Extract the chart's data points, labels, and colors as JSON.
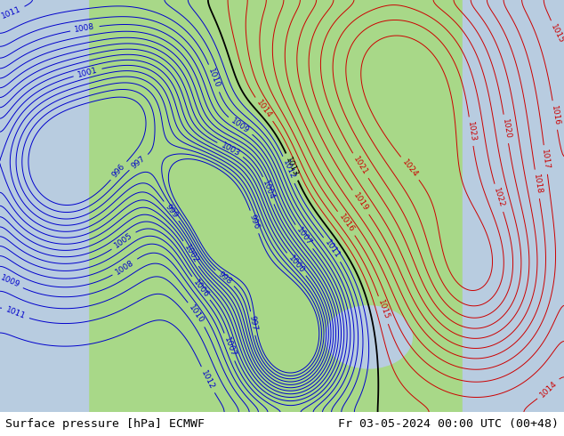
{
  "title_left": "Surface pressure [hPa] ECMWF",
  "title_right": "Fr 03-05-2024 00:00 UTC (00+48)",
  "title_fontsize": 9.5,
  "background_color": "#ffffff",
  "figsize": [
    6.34,
    4.9
  ],
  "dpi": 100,
  "blue_contour_color": "#0000cc",
  "red_contour_color": "#cc0000",
  "black_contour_color": "#000000",
  "label_fontsize": 6.5,
  "lon_min": -175,
  "lon_max": -45,
  "lat_min": 12,
  "lat_max": 78,
  "land_green": "#a8d888",
  "ocean_blue": "#b8cce0",
  "glacier_white": "#e8e8e8"
}
